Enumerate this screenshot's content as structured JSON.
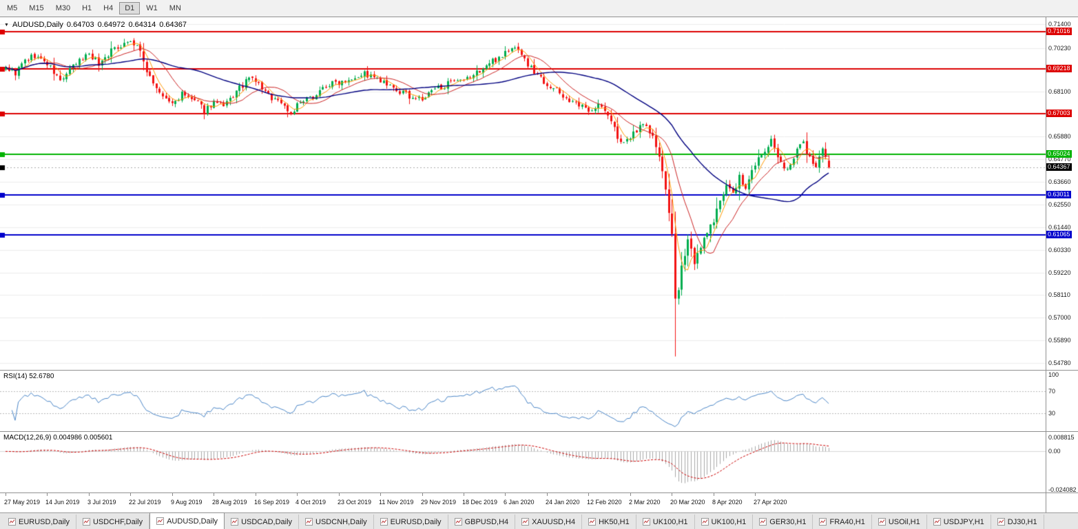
{
  "toolbar": {
    "timeframes": [
      "M5",
      "M15",
      "M30",
      "H1",
      "H4",
      "D1",
      "W1",
      "MN"
    ],
    "active": "D1"
  },
  "chart": {
    "collapse_glyph": "▼",
    "symbol_title": "AUDUSD,Daily",
    "ohlc": {
      "open": "0.64703",
      "high": "0.64972",
      "low": "0.64314",
      "close": "0.64367"
    }
  },
  "rsi": {
    "title": "RSI(14) 52.6780",
    "levels": [
      {
        "v": 100,
        "label": "100"
      },
      {
        "v": 70,
        "label": "70"
      },
      {
        "v": 30,
        "label": "30"
      }
    ]
  },
  "macd": {
    "title": "MACD(12,26,9) 0.004986 0.005601",
    "axis": [
      {
        "v": 0.008815,
        "label": "0.008815"
      },
      {
        "v": 0,
        "label": "0.00"
      },
      {
        "v": -0.024082,
        "label": "-0.024082"
      }
    ]
  },
  "tabs": {
    "items": [
      "EURUSD,Daily",
      "USDCHF,Daily",
      "AUDUSD,Daily",
      "USDCAD,Daily",
      "USDCNH,Daily",
      "EURUSD,Daily",
      "GBPUSD,H4",
      "XAUUSD,H4",
      "HK50,H1",
      "UK100,H1",
      "UK100,H1",
      "GER30,H1",
      "FRA40,H1",
      "USOil,H1",
      "USDJPY,H1",
      "DJ30,H1"
    ],
    "active_index": 2
  },
  "chart_data": {
    "type": "candlestick",
    "symbol": "AUDUSD",
    "timeframe": "Daily",
    "title_ohlc": {
      "open": 0.64703,
      "high": 0.64972,
      "low": 0.64314,
      "close": 0.64367
    },
    "current_price": 0.64367,
    "price_axis": {
      "top": 0.714,
      "bottom": 0.5478,
      "gridlines": [
        0.714,
        0.7023,
        0.681,
        0.6588,
        0.6477,
        0.6366,
        0.6255,
        0.6144,
        0.6033,
        0.5922,
        0.5811,
        0.57,
        0.5589,
        0.5478
      ]
    },
    "horizontal_lines": [
      {
        "value": 0.71016,
        "color": "#dd0000"
      },
      {
        "value": 0.69218,
        "color": "#dd0000"
      },
      {
        "value": 0.67003,
        "color": "#dd0000"
      },
      {
        "value": 0.65024,
        "color": "#00b300"
      },
      {
        "value": 0.63011,
        "color": "#0000cc"
      },
      {
        "value": 0.61065,
        "color": "#0000cc"
      }
    ],
    "candle_count": 258,
    "x_dates": [
      "27 May 2019",
      "14 Jun 2019",
      "3 Jul 2019",
      "22 Jul 2019",
      "9 Aug 2019",
      "28 Aug 2019",
      "16 Sep 2019",
      "4 Oct 2019",
      "23 Oct 2019",
      "11 Nov 2019",
      "29 Nov 2019",
      "18 Dec 2019",
      "6 Jan 2020",
      "24 Jan 2020",
      "12 Feb 2020",
      "2 Mar 2020",
      "20 Mar 2020",
      "8 Apr 2020",
      "27 Apr 2020"
    ],
    "date_tick_interval": 13,
    "close_anchors": [
      [
        0,
        0.693
      ],
      [
        3,
        0.69
      ],
      [
        6,
        0.696
      ],
      [
        9,
        0.6985
      ],
      [
        13,
        0.6945
      ],
      [
        17,
        0.686
      ],
      [
        21,
        0.693
      ],
      [
        26,
        0.7
      ],
      [
        29,
        0.6945
      ],
      [
        33,
        0.701
      ],
      [
        38,
        0.7058
      ],
      [
        41,
        0.7035
      ],
      [
        44,
        0.6915
      ],
      [
        48,
        0.6795
      ],
      [
        52,
        0.6748
      ],
      [
        55,
        0.6795
      ],
      [
        59,
        0.6762
      ],
      [
        62,
        0.6718
      ],
      [
        65,
        0.6758
      ],
      [
        68,
        0.673
      ],
      [
        72,
        0.6808
      ],
      [
        76,
        0.6872
      ],
      [
        78,
        0.6862
      ],
      [
        82,
        0.6788
      ],
      [
        86,
        0.6758
      ],
      [
        89,
        0.67
      ],
      [
        91,
        0.6742
      ],
      [
        95,
        0.6775
      ],
      [
        100,
        0.6838
      ],
      [
        104,
        0.6858
      ],
      [
        108,
        0.688
      ],
      [
        112,
        0.6898
      ],
      [
        117,
        0.6858
      ],
      [
        121,
        0.6818
      ],
      [
        126,
        0.6788
      ],
      [
        130,
        0.6768
      ],
      [
        134,
        0.6822
      ],
      [
        138,
        0.6846
      ],
      [
        143,
        0.6858
      ],
      [
        147,
        0.6902
      ],
      [
        152,
        0.6958
      ],
      [
        157,
        0.7012
      ],
      [
        160,
        0.7025
      ],
      [
        163,
        0.6938
      ],
      [
        166,
        0.6892
      ],
      [
        169,
        0.6848
      ],
      [
        173,
        0.6802
      ],
      [
        178,
        0.6742
      ],
      [
        182,
        0.6722
      ],
      [
        185,
        0.6745
      ],
      [
        188,
        0.6695
      ],
      [
        191,
        0.659
      ],
      [
        193,
        0.6545
      ],
      [
        196,
        0.6605
      ],
      [
        199,
        0.666
      ],
      [
        202,
        0.6585
      ],
      [
        204,
        0.649
      ],
      [
        206,
        0.632
      ],
      [
        208,
        0.612
      ],
      [
        209,
        0.578
      ],
      [
        210,
        0.5825
      ],
      [
        211,
        0.594
      ],
      [
        213,
        0.6095
      ],
      [
        215,
        0.5975
      ],
      [
        217,
        0.6035
      ],
      [
        219,
        0.613
      ],
      [
        221,
        0.616
      ],
      [
        223,
        0.6285
      ],
      [
        225,
        0.6355
      ],
      [
        227,
        0.6305
      ],
      [
        229,
        0.6385
      ],
      [
        231,
        0.633
      ],
      [
        234,
        0.646
      ],
      [
        237,
        0.6515
      ],
      [
        239,
        0.657
      ],
      [
        241,
        0.648
      ],
      [
        243,
        0.6425
      ],
      [
        245,
        0.6455
      ],
      [
        247,
        0.6535
      ],
      [
        249,
        0.6555
      ],
      [
        251,
        0.6485
      ],
      [
        253,
        0.6435
      ],
      [
        255,
        0.6515
      ],
      [
        257,
        0.64367
      ]
    ],
    "crash_low_wick": 0.551,
    "moving_averages": [
      {
        "period": 5,
        "color": "#ff9900"
      },
      {
        "period": 13,
        "color": "#cc2222"
      },
      {
        "period": 40,
        "color": "#000080"
      }
    ],
    "colors": {
      "up": "#00ad4e",
      "down": "#f31212",
      "rsi_line": "#4a86c8",
      "macd_hist": "#a8a8a8",
      "macd_signal": "#cc0000",
      "current_price_bg": "#000000"
    },
    "rsi_current": 52.678,
    "macd_current": {
      "main": 0.004986,
      "signal": 0.005601
    }
  }
}
